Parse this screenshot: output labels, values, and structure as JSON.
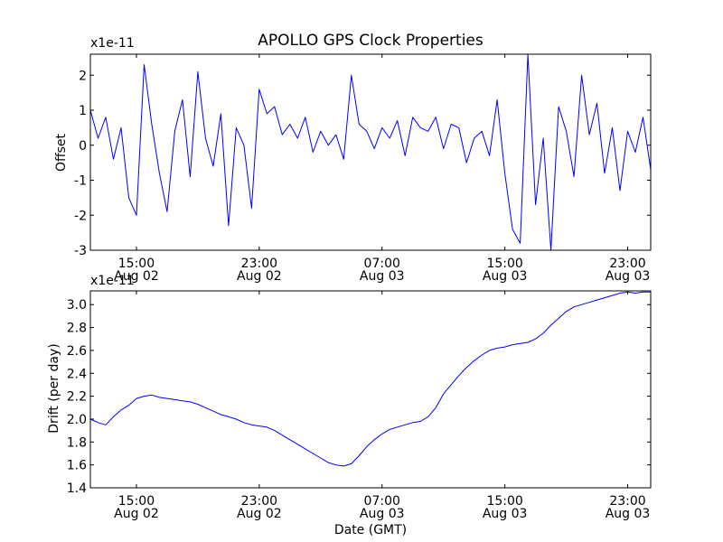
{
  "chart_data": [
    {
      "type": "line",
      "title": "APOLLO GPS Clock Properties",
      "ylabel": "Offset",
      "xlabel": "",
      "offset_text": "x1e-11",
      "ylim": [
        -3,
        2.6
      ],
      "yticks": [
        -3,
        -2,
        -1,
        0,
        1,
        2
      ],
      "xlim": [
        0,
        36.5
      ],
      "xticks": [
        {
          "x": 3.0,
          "label1": "15:00",
          "label2": "Aug 02"
        },
        {
          "x": 11.0,
          "label1": "23:00",
          "label2": "Aug 02"
        },
        {
          "x": 19.0,
          "label1": "07:00",
          "label2": "Aug 03"
        },
        {
          "x": 27.0,
          "label1": "15:00",
          "label2": "Aug 03"
        },
        {
          "x": 35.0,
          "label1": "23:00",
          "label2": "Aug 03"
        }
      ],
      "series": [
        {
          "color": "#0000ff",
          "x": [
            0,
            0.5,
            1,
            1.5,
            2,
            2.5,
            3,
            3.5,
            4,
            4.5,
            5,
            5.5,
            6,
            6.5,
            7,
            7.5,
            8,
            8.5,
            9,
            9.5,
            10,
            10.5,
            11,
            11.5,
            12,
            12.5,
            13,
            13.5,
            14,
            14.5,
            15,
            15.5,
            16,
            16.5,
            17,
            17.5,
            18,
            18.5,
            19,
            19.5,
            20,
            20.5,
            21,
            21.5,
            22,
            22.5,
            23,
            23.5,
            24,
            24.5,
            25,
            25.5,
            26,
            26.5,
            27,
            27.5,
            28,
            28.5,
            29,
            29.5,
            30,
            30.5,
            31,
            31.5,
            32,
            32.5,
            33,
            33.5,
            34,
            34.5,
            35,
            35.5,
            36,
            36.5
          ],
          "values": [
            1.0,
            0.2,
            0.8,
            -0.4,
            0.5,
            -1.5,
            -2.0,
            2.3,
            0.6,
            -0.8,
            -1.9,
            0.4,
            1.3,
            -0.9,
            2.1,
            0.2,
            -0.6,
            0.9,
            -2.3,
            0.5,
            0.0,
            -1.8,
            1.6,
            0.9,
            1.1,
            0.3,
            0.6,
            0.2,
            0.8,
            -0.2,
            0.4,
            0.0,
            0.3,
            -0.4,
            2.0,
            0.6,
            0.4,
            -0.1,
            0.5,
            0.2,
            0.7,
            -0.3,
            0.8,
            0.5,
            0.4,
            0.8,
            -0.1,
            0.6,
            0.5,
            -0.5,
            0.2,
            0.4,
            -0.3,
            1.3,
            -0.8,
            -2.4,
            -2.8,
            2.6,
            -1.7,
            0.2,
            -3.0,
            1.1,
            0.4,
            -0.9,
            2.0,
            0.3,
            1.2,
            -0.8,
            0.5,
            -1.3,
            0.4,
            -0.2,
            0.8,
            -0.7
          ]
        }
      ]
    },
    {
      "type": "line",
      "title": "",
      "ylabel": "Drift (per day)",
      "xlabel": "Date (GMT)",
      "offset_text": "x1e-11",
      "ylim": [
        1.4,
        3.12
      ],
      "yticks": [
        1.4,
        1.6,
        1.8,
        2.0,
        2.2,
        2.4,
        2.6,
        2.8,
        3.0
      ],
      "ytick_labels": [
        "1.4",
        "1.6",
        "1.8",
        "2.0",
        "2.2",
        "2.4",
        "2.6",
        "2.8",
        "3.0"
      ],
      "xlim": [
        0,
        36.5
      ],
      "xticks": [
        {
          "x": 3.0,
          "label1": "15:00",
          "label2": "Aug 02"
        },
        {
          "x": 11.0,
          "label1": "23:00",
          "label2": "Aug 02"
        },
        {
          "x": 19.0,
          "label1": "07:00",
          "label2": "Aug 03"
        },
        {
          "x": 27.0,
          "label1": "15:00",
          "label2": "Aug 03"
        },
        {
          "x": 35.0,
          "label1": "23:00",
          "label2": "Aug 03"
        }
      ],
      "series": [
        {
          "color": "#0000ff",
          "x": [
            0,
            0.5,
            1,
            1.5,
            2,
            2.5,
            3,
            3.5,
            4,
            4.5,
            5,
            5.5,
            6,
            6.5,
            7,
            7.5,
            8,
            8.5,
            9,
            9.5,
            10,
            10.5,
            11,
            11.5,
            12,
            12.5,
            13,
            13.5,
            14,
            14.5,
            15,
            15.5,
            16,
            16.5,
            17,
            17.5,
            18,
            18.5,
            19,
            19.5,
            20,
            20.5,
            21,
            21.5,
            22,
            22.5,
            23,
            23.5,
            24,
            24.5,
            25,
            25.5,
            26,
            26.5,
            27,
            27.5,
            28,
            28.5,
            29,
            29.5,
            30,
            30.5,
            31,
            31.5,
            32,
            32.5,
            33,
            33.5,
            34,
            34.5,
            35,
            35.5,
            36,
            36.5
          ],
          "values": [
            2.0,
            1.97,
            1.95,
            2.02,
            2.08,
            2.12,
            2.18,
            2.2,
            2.21,
            2.19,
            2.18,
            2.17,
            2.16,
            2.15,
            2.13,
            2.1,
            2.07,
            2.04,
            2.02,
            2.0,
            1.97,
            1.95,
            1.94,
            1.93,
            1.9,
            1.86,
            1.82,
            1.78,
            1.74,
            1.7,
            1.66,
            1.62,
            1.6,
            1.59,
            1.61,
            1.68,
            1.76,
            1.82,
            1.87,
            1.91,
            1.93,
            1.95,
            1.97,
            1.98,
            2.02,
            2.1,
            2.22,
            2.3,
            2.38,
            2.45,
            2.51,
            2.56,
            2.6,
            2.62,
            2.63,
            2.65,
            2.66,
            2.67,
            2.7,
            2.75,
            2.82,
            2.88,
            2.94,
            2.98,
            3.0,
            3.02,
            3.04,
            3.06,
            3.08,
            3.1,
            3.11,
            3.1,
            3.11,
            3.11
          ]
        }
      ]
    }
  ]
}
